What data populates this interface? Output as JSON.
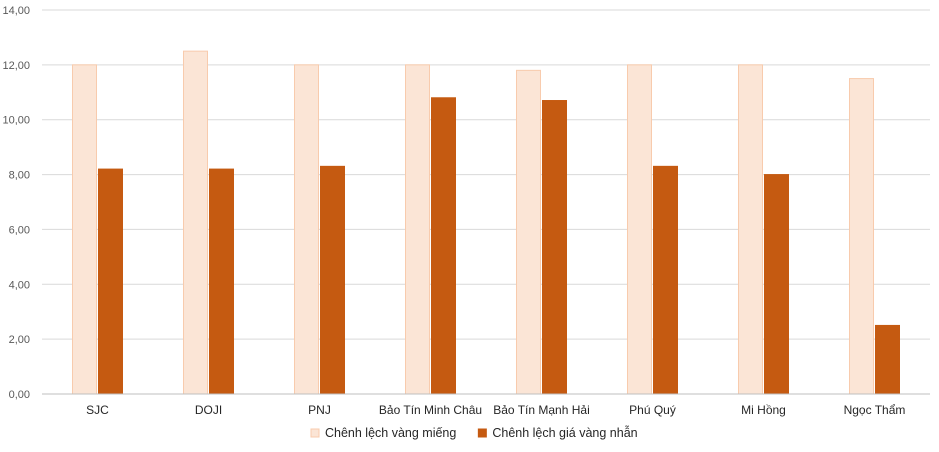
{
  "chart_data": {
    "type": "bar",
    "title": "",
    "xlabel": "",
    "ylabel": "",
    "ylim": [
      0,
      14
    ],
    "yticks": [
      "0,00",
      "2,00",
      "4,00",
      "6,00",
      "8,00",
      "10,00",
      "12,00",
      "14,00"
    ],
    "grid": true,
    "legend_position": "bottom",
    "categories": [
      "SJC",
      "DOJI",
      "PNJ",
      "Bảo Tín Minh Châu",
      "Bảo Tín Mạnh Hải",
      "Phú Quý",
      "Mi Hồng",
      "Ngọc Thẩm"
    ],
    "series": [
      {
        "name": "Chênh lệch vàng miếng",
        "color": "#FBE5D6",
        "stroke": "#F8CBAD",
        "values": [
          12.0,
          12.5,
          12.0,
          12.0,
          11.8,
          12.0,
          12.0,
          11.5
        ]
      },
      {
        "name": "Chênh lệch giá vàng nhẫn",
        "color": "#C55A11",
        "stroke": "#C55A11",
        "values": [
          8.2,
          8.2,
          8.3,
          10.8,
          10.7,
          8.3,
          8.0,
          2.5
        ]
      }
    ]
  }
}
